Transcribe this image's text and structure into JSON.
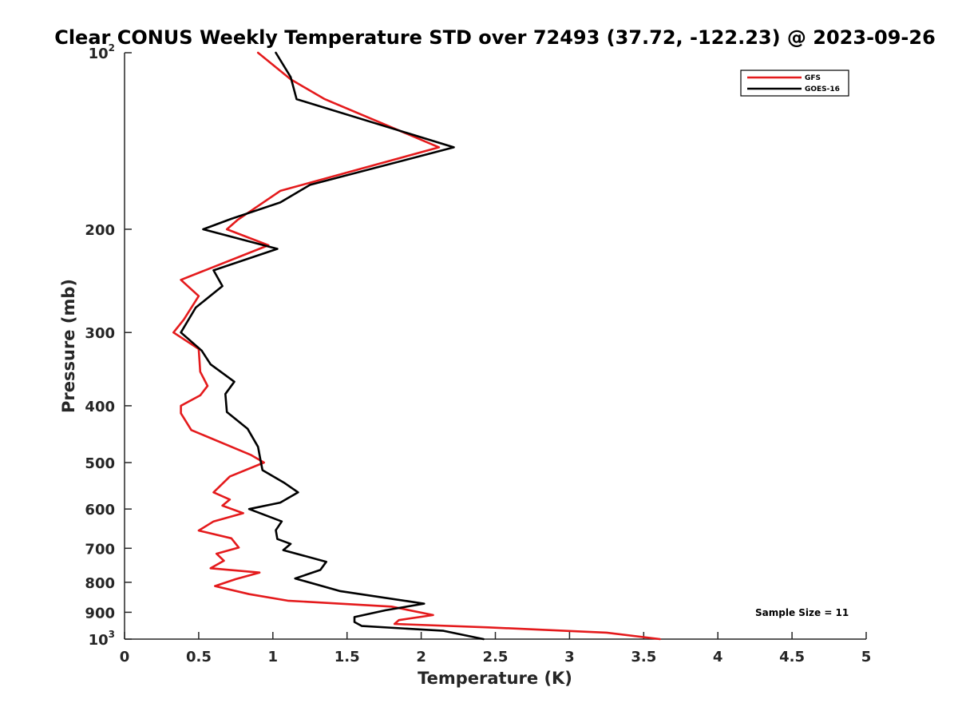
{
  "chart_data": {
    "type": "line",
    "title": "Clear CONUS Weekly Temperature STD over 72493 (37.72, -122.23) @ 2023-09-26",
    "xlabel": "Temperature (K)",
    "ylabel": "Pressure (mb)",
    "xlim": [
      0,
      5
    ],
    "ylim": [
      100,
      1000
    ],
    "y_scale": "log",
    "y_reversed": true,
    "grid": false,
    "x_ticks": [
      "0",
      "0.5",
      "1",
      "1.5",
      "2",
      "2.5",
      "3",
      "3.5",
      "4",
      "4.5",
      "5"
    ],
    "x_tick_values": [
      0,
      0.5,
      1,
      1.5,
      2,
      2.5,
      3,
      3.5,
      4,
      4.5,
      5
    ],
    "y_ticks": [
      {
        "value": 100,
        "base": "10",
        "exp": "2"
      },
      {
        "value": 200,
        "label": "200"
      },
      {
        "value": 300,
        "label": "300"
      },
      {
        "value": 400,
        "label": "400"
      },
      {
        "value": 500,
        "label": "500"
      },
      {
        "value": 600,
        "label": "600"
      },
      {
        "value": 700,
        "label": "700"
      },
      {
        "value": 800,
        "label": "800"
      },
      {
        "value": 900,
        "label": "900"
      },
      {
        "value": 1000,
        "base": "10",
        "exp": "3"
      }
    ],
    "legend_position": "top-right",
    "annotation": "Sample Size = 11",
    "series": [
      {
        "name": "GFS",
        "color": "#e41a1c",
        "points": [
          [
            0.9,
            100
          ],
          [
            1.12,
            111
          ],
          [
            1.35,
            120
          ],
          [
            2.12,
            145
          ],
          [
            1.05,
            172
          ],
          [
            0.76,
            193
          ],
          [
            0.69,
            200
          ],
          [
            0.97,
            213
          ],
          [
            0.38,
            244
          ],
          [
            0.5,
            260
          ],
          [
            0.4,
            285
          ],
          [
            0.33,
            300
          ],
          [
            0.5,
            320
          ],
          [
            0.51,
            350
          ],
          [
            0.56,
            370
          ],
          [
            0.51,
            384
          ],
          [
            0.38,
            400
          ],
          [
            0.38,
            412
          ],
          [
            0.45,
            440
          ],
          [
            0.85,
            485
          ],
          [
            0.94,
            500
          ],
          [
            0.71,
            528
          ],
          [
            0.6,
            562
          ],
          [
            0.71,
            578
          ],
          [
            0.66,
            592
          ],
          [
            0.8,
            610
          ],
          [
            0.6,
            630
          ],
          [
            0.5,
            653
          ],
          [
            0.72,
            673
          ],
          [
            0.77,
            698
          ],
          [
            0.62,
            715
          ],
          [
            0.67,
            735
          ],
          [
            0.58,
            757
          ],
          [
            0.91,
            770
          ],
          [
            0.75,
            790
          ],
          [
            0.61,
            812
          ],
          [
            0.84,
            838
          ],
          [
            1.1,
            860
          ],
          [
            1.8,
            880
          ],
          [
            2.08,
            910
          ],
          [
            1.85,
            928
          ],
          [
            1.82,
            942
          ],
          [
            2.45,
            955
          ],
          [
            3.25,
            975
          ],
          [
            3.61,
            1000
          ]
        ]
      },
      {
        "name": "GOES-16",
        "color": "#000000",
        "points": [
          [
            1.02,
            100
          ],
          [
            1.12,
            110
          ],
          [
            1.16,
            120
          ],
          [
            2.22,
            145
          ],
          [
            1.25,
            168
          ],
          [
            1.05,
            180
          ],
          [
            0.72,
            192
          ],
          [
            0.53,
            200
          ],
          [
            1.03,
            216
          ],
          [
            0.6,
            235
          ],
          [
            0.66,
            250
          ],
          [
            0.48,
            272
          ],
          [
            0.38,
            300
          ],
          [
            0.52,
            322
          ],
          [
            0.58,
            340
          ],
          [
            0.74,
            364
          ],
          [
            0.68,
            382
          ],
          [
            0.69,
            410
          ],
          [
            0.83,
            438
          ],
          [
            0.9,
            470
          ],
          [
            0.92,
            500
          ],
          [
            0.93,
            515
          ],
          [
            1.08,
            542
          ],
          [
            1.17,
            562
          ],
          [
            1.05,
            585
          ],
          [
            0.84,
            600
          ],
          [
            1.06,
            630
          ],
          [
            1.02,
            652
          ],
          [
            1.03,
            675
          ],
          [
            1.12,
            688
          ],
          [
            1.07,
            705
          ],
          [
            1.36,
            738
          ],
          [
            1.32,
            762
          ],
          [
            1.15,
            788
          ],
          [
            1.45,
            828
          ],
          [
            2.02,
            870
          ],
          [
            1.76,
            893
          ],
          [
            1.55,
            917
          ],
          [
            1.55,
            935
          ],
          [
            1.6,
            950
          ],
          [
            2.15,
            968
          ],
          [
            2.42,
            1000
          ]
        ]
      }
    ]
  }
}
